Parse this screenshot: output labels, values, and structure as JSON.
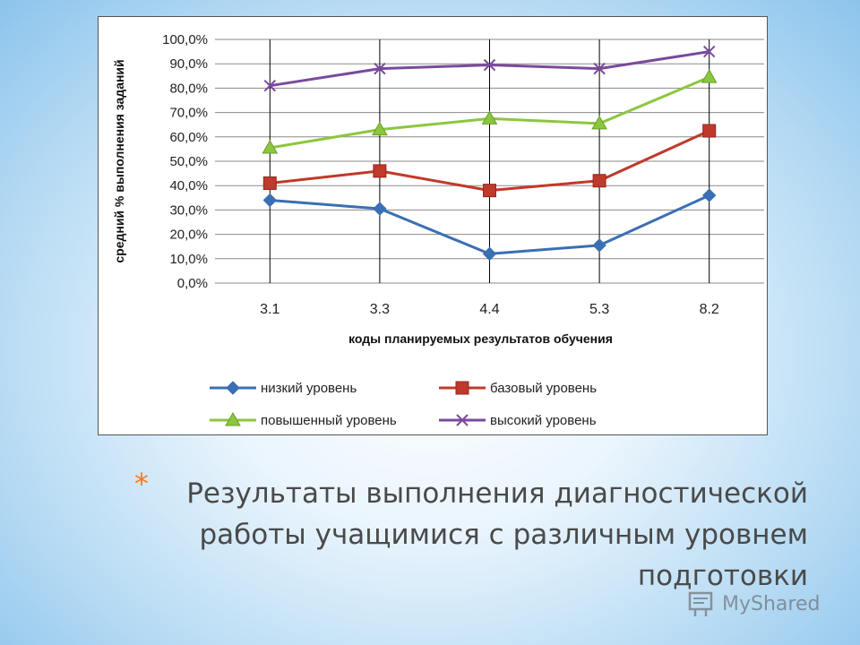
{
  "chart_data": {
    "type": "line",
    "categories": [
      "3.1",
      "3.3",
      "4.4",
      "5.3",
      "8.2"
    ],
    "ylabel": "средний % выполнения заданий",
    "xlabel": "коды планируемых результатов обучения",
    "ylim": [
      0,
      100
    ],
    "yticks": [
      "0,0%",
      "10,0%",
      "20,0%",
      "30,0%",
      "40,0%",
      "50,0%",
      "60,0%",
      "70,0%",
      "80,0%",
      "90,0%",
      "100,0%"
    ],
    "grid": true,
    "legend_position": "bottom",
    "series": [
      {
        "name": "низкий уровень",
        "color": "#3a6fb3",
        "marker": "diamond",
        "values": [
          34,
          30.5,
          12,
          15.5,
          36
        ]
      },
      {
        "name": "базовый уровень",
        "color": "#c0392b",
        "marker": "square",
        "values": [
          41,
          46,
          38,
          42,
          62.5
        ]
      },
      {
        "name": "повышенный уровень",
        "color": "#8cc63f",
        "marker": "triangle",
        "values": [
          55.5,
          63,
          67.5,
          65.5,
          84.5
        ]
      },
      {
        "name": "высокий уровень",
        "color": "#7a4a9c",
        "marker": "x",
        "values": [
          81,
          88,
          89.5,
          88,
          95
        ]
      }
    ]
  },
  "caption": {
    "star": "*",
    "lines": [
      "Результаты выполнения диагностической",
      "работы учащимися с различным уровнем",
      "подготовки"
    ]
  },
  "watermark": {
    "text": "MyShared",
    "icon": "presentation-icon"
  }
}
